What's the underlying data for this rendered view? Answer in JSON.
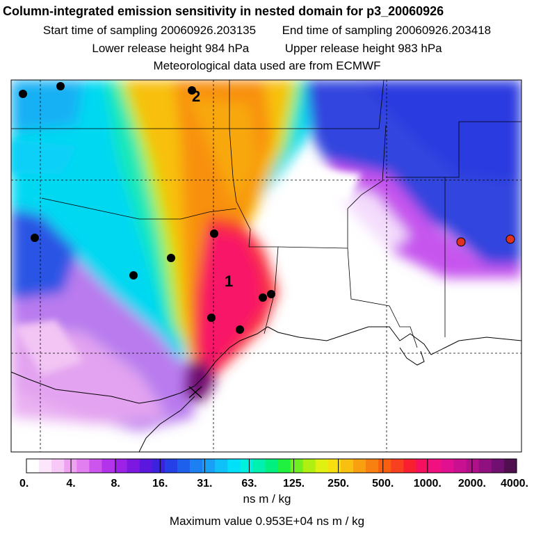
{
  "header": {
    "title": "Column-integrated emission sensitivity in nested domain for p3_20060926",
    "start_label": "Start time of sampling 20060926.203135",
    "end_label": "End time of sampling 20060926.203418",
    "lower_label": "Lower release height  984 hPa",
    "upper_label": "Upper release height  983 hPa",
    "met_label": "Meteorological data used are from ECMWF"
  },
  "map": {
    "markers": [
      {
        "label": "1",
        "color": "#000000"
      },
      {
        "label": "2",
        "color": "#000000"
      }
    ],
    "station_color": "#000000",
    "highlight_color": "#e03020"
  },
  "colorbar": {
    "ticks": [
      "0.",
      "4.",
      "8.",
      "16.",
      "31.",
      "63.",
      "125.",
      "250.",
      "500.",
      "1000.",
      "2000.",
      "4000."
    ],
    "units": "ns m / kg",
    "colors": [
      "#ffffff",
      "#fbe6fb",
      "#f6c9f6",
      "#eea3f1",
      "#e27ff0",
      "#cc55ee",
      "#b233ea",
      "#9b22e6",
      "#7d18e2",
      "#5a18df",
      "#3b22de",
      "#2440e6",
      "#1c60ec",
      "#1c80f2",
      "#18a0f6",
      "#10c0f8",
      "#00e0f8",
      "#00f0e0",
      "#00f0b0",
      "#00f080",
      "#20f040",
      "#70f020",
      "#b0f010",
      "#e0f010",
      "#f8e010",
      "#f8c010",
      "#f8a010",
      "#f88010",
      "#f86010",
      "#f84020",
      "#f82030",
      "#f81060",
      "#f01080",
      "#e01090",
      "#c81090",
      "#b01088",
      "#901080",
      "#701070",
      "#501050"
    ]
  },
  "footer": {
    "max_label": "Maximum value  0.953E+04 ns m / kg"
  }
}
